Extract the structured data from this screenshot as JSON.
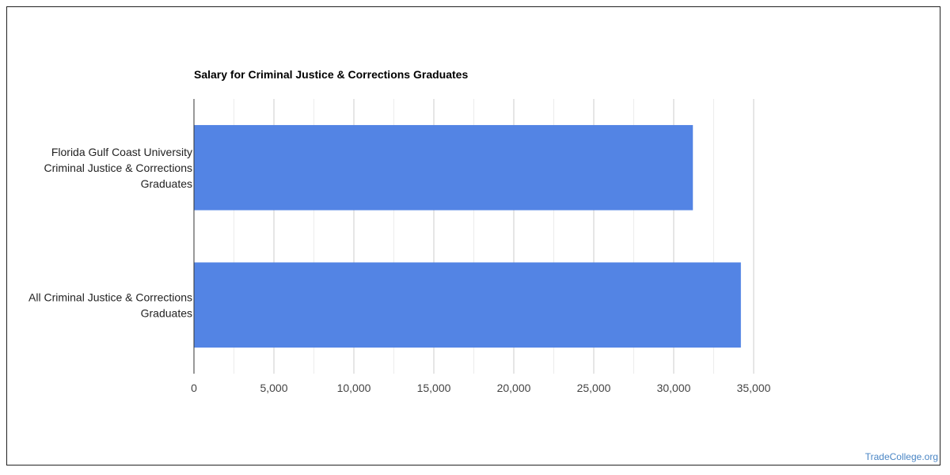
{
  "chart_data": {
    "type": "bar",
    "orientation": "horizontal",
    "title": "Salary for Criminal Justice & Corrections Graduates",
    "categories": [
      [
        "Florida Gulf Coast University",
        "Criminal Justice & Corrections",
        "Graduates"
      ],
      [
        "All Criminal Justice & Corrections",
        "Graduates"
      ]
    ],
    "values": [
      31200,
      34200
    ],
    "xlim": [
      0,
      35000
    ],
    "xticks": [
      "0",
      "5,000",
      "10,000",
      "15,000",
      "20,000",
      "25,000",
      "30,000",
      "35,000"
    ],
    "xtick_values": [
      0,
      5000,
      10000,
      15000,
      20000,
      25000,
      30000,
      35000
    ],
    "bar_color": "#5384e4",
    "grid": true,
    "legend": "none"
  },
  "footer": {
    "credit": "TradeCollege.org",
    "credit_color": "#4a86c5"
  }
}
